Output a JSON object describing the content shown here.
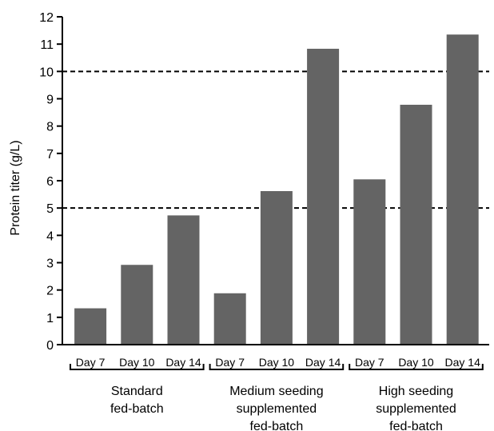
{
  "chart_data": {
    "type": "bar",
    "title": "",
    "ylabel": "Protein titer (g/L)",
    "xlabel": "",
    "ylim": [
      0,
      12
    ],
    "yticks": [
      0,
      1,
      2,
      3,
      4,
      5,
      6,
      7,
      8,
      9,
      10,
      11,
      12
    ],
    "reference_lines": [
      5,
      10
    ],
    "bar_color": "#646464",
    "groups": [
      {
        "label_lines": [
          "Standard",
          "fed-batch"
        ],
        "bars": [
          {
            "category": "Day 7",
            "value": 1.33
          },
          {
            "category": "Day 10",
            "value": 2.92
          },
          {
            "category": "Day 14",
            "value": 4.73
          }
        ]
      },
      {
        "label_lines": [
          "Medium seeding",
          "supplemented",
          "fed-batch"
        ],
        "bars": [
          {
            "category": "Day 7",
            "value": 1.88
          },
          {
            "category": "Day 10",
            "value": 5.62
          },
          {
            "category": "Day 14",
            "value": 10.83
          }
        ]
      },
      {
        "label_lines": [
          "High seeding",
          "supplemented",
          "fed-batch"
        ],
        "bars": [
          {
            "category": "Day 7",
            "value": 6.05
          },
          {
            "category": "Day 10",
            "value": 8.78
          },
          {
            "category": "Day 14",
            "value": 11.35
          }
        ]
      }
    ]
  }
}
